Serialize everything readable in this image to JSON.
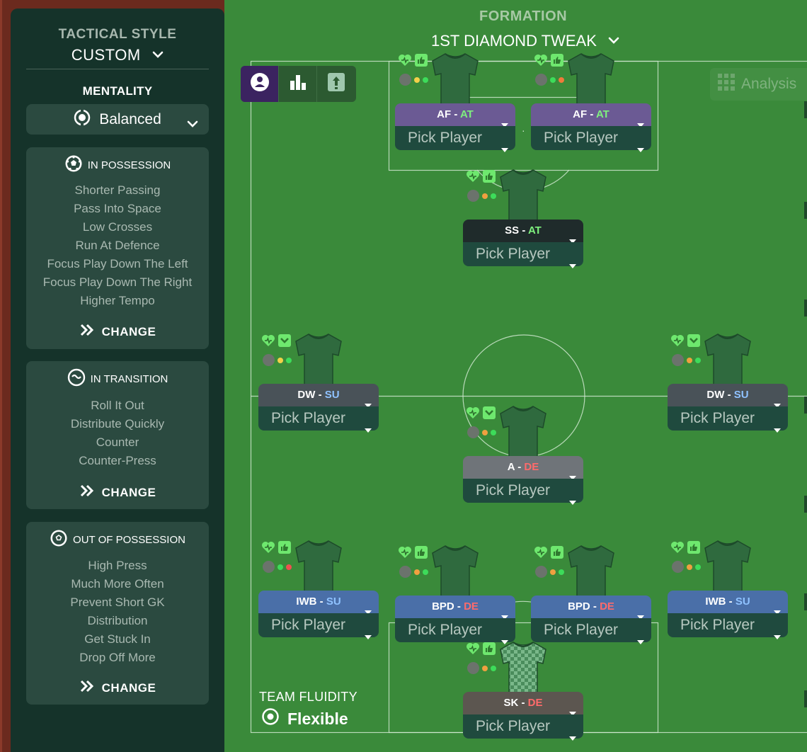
{
  "tactical_style": {
    "label": "TACTICAL STYLE",
    "value": "CUSTOM"
  },
  "mentality": {
    "label": "MENTALITY",
    "value": "Balanced"
  },
  "in_possession": {
    "title": "IN POSSESSION",
    "items": [
      "Shorter Passing",
      "Pass Into Space",
      "Low Crosses",
      "Run At Defence",
      "Focus Play Down The Left",
      "Focus Play Down The Right",
      "Higher Tempo"
    ],
    "change": "CHANGE"
  },
  "in_transition": {
    "title": "IN TRANSITION",
    "items": [
      "Roll It Out",
      "Distribute Quickly",
      "Counter",
      "Counter-Press"
    ],
    "change": "CHANGE"
  },
  "out_of_possession": {
    "title": "OUT OF POSSESSION",
    "items": [
      "High Press",
      "Much More Often",
      "Prevent Short GK",
      "Distribution",
      "Get Stuck In",
      "Drop Off More"
    ],
    "change": "CHANGE"
  },
  "formation": {
    "label": "FORMATION",
    "value": "1ST DIAMOND TWEAK"
  },
  "analysis": "Analysis",
  "team_fluidity": {
    "label": "TEAM FLUIDITY",
    "value": "Flexible"
  },
  "separator": "·",
  "positions": [
    {
      "role": "AF",
      "duty": "AT",
      "pick": "Pick Player"
    },
    {
      "role": "AF",
      "duty": "AT",
      "pick": "Pick Player"
    },
    {
      "role": "SS",
      "duty": "AT",
      "pick": "Pick Player"
    },
    {
      "role": "DW",
      "duty": "SU",
      "pick": "Pick Player"
    },
    {
      "role": "DW",
      "duty": "SU",
      "pick": "Pick Player"
    },
    {
      "role": "A",
      "duty": "DE",
      "pick": "Pick Player"
    },
    {
      "role": "IWB",
      "duty": "SU",
      "pick": "Pick Player"
    },
    {
      "role": "BPD",
      "duty": "DE",
      "pick": "Pick Player"
    },
    {
      "role": "BPD",
      "duty": "DE",
      "pick": "Pick Player"
    },
    {
      "role": "IWB",
      "duty": "SU",
      "pick": "Pick Player"
    },
    {
      "role": "SK",
      "duty": "DE",
      "pick": "Pick Player"
    }
  ],
  "colors": {
    "panel": "#15332a",
    "card": "#2b4a40",
    "pitch": "#3a8a3a",
    "attack_role_bar": "#6b5a94",
    "defensive_mid_role_bar": "#6f7479",
    "wing_role_bar": "#495258",
    "wingback_role_bar": "#4a6fa8",
    "keeper_role_bar": "#5c5650",
    "striker_role_bar": "#1f2b2b",
    "toolbar_active": "#3b2360"
  }
}
